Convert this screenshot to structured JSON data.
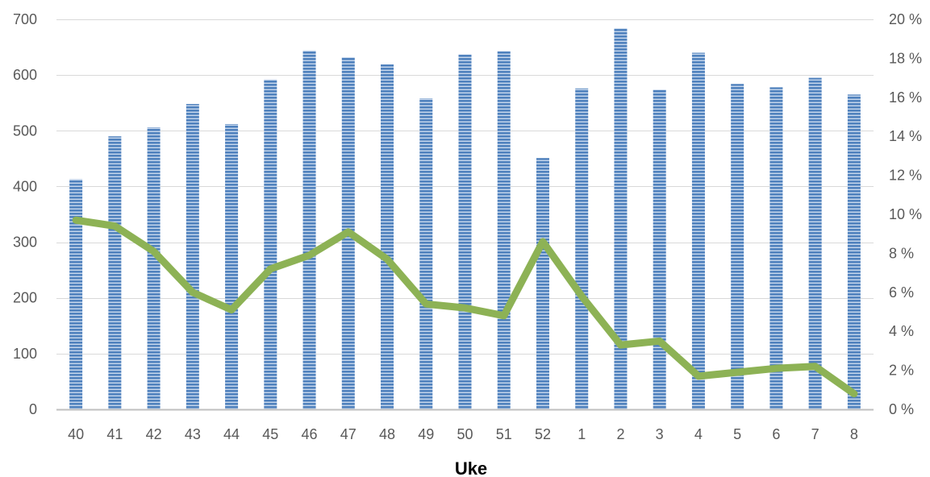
{
  "chart_data": {
    "type": "bar",
    "categories": [
      "40",
      "41",
      "42",
      "43",
      "44",
      "45",
      "46",
      "47",
      "48",
      "49",
      "50",
      "51",
      "52",
      "1",
      "2",
      "3",
      "4",
      "5",
      "6",
      "7",
      "8"
    ],
    "series": [
      {
        "type": "bar",
        "axis": "left",
        "color": "#4f81bd",
        "values": [
          413,
          490,
          506,
          548,
          512,
          592,
          644,
          632,
          619,
          558,
          637,
          643,
          451,
          576,
          684,
          574,
          640,
          584,
          578,
          595,
          565
        ]
      },
      {
        "type": "line",
        "axis": "right",
        "color": "#8db255",
        "values": [
          9.7,
          9.4,
          8.1,
          6.0,
          5.1,
          7.2,
          7.9,
          9.1,
          7.7,
          5.4,
          5.2,
          4.8,
          8.6,
          5.8,
          3.3,
          3.5,
          1.7,
          1.9,
          2.1,
          2.2,
          0.8
        ]
      }
    ],
    "xlabel": "Uke",
    "ylim": [
      0,
      700
    ],
    "y_ticks": [
      "0",
      "100",
      "200",
      "300",
      "400",
      "500",
      "600",
      "700"
    ],
    "y2lim": [
      0,
      20
    ],
    "y2_ticks": [
      "0 %",
      "2 %",
      "4 %",
      "6 %",
      "8 %",
      "10 %",
      "12 %",
      "14 %",
      "16 %",
      "18 %",
      "20 %"
    ],
    "grid": true,
    "legend": "none"
  }
}
